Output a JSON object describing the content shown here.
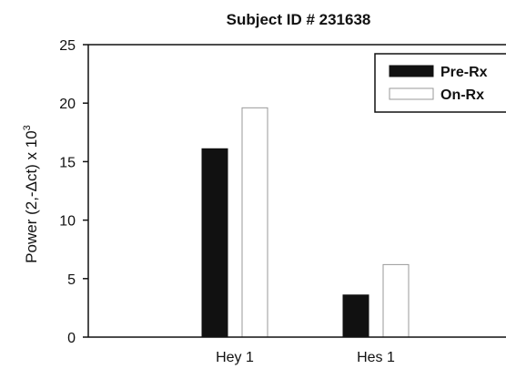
{
  "chart_data": {
    "type": "bar",
    "title": "Subject ID # 231638",
    "xlabel": "",
    "ylabel": "Power (2,-Δct) x 10",
    "ylabel_superscript": "3",
    "categories": [
      "Hey 1",
      "Hes 1"
    ],
    "series": [
      {
        "name": "Pre-Rx",
        "values": [
          16.1,
          3.6
        ],
        "color": "#111111"
      },
      {
        "name": "On-Rx",
        "values": [
          19.6,
          6.2
        ],
        "color": "#ffffff"
      }
    ],
    "ylim": [
      0,
      25
    ],
    "yticks": [
      0,
      5,
      10,
      15,
      20,
      25
    ],
    "grid": false,
    "legend_position": "top-right"
  }
}
